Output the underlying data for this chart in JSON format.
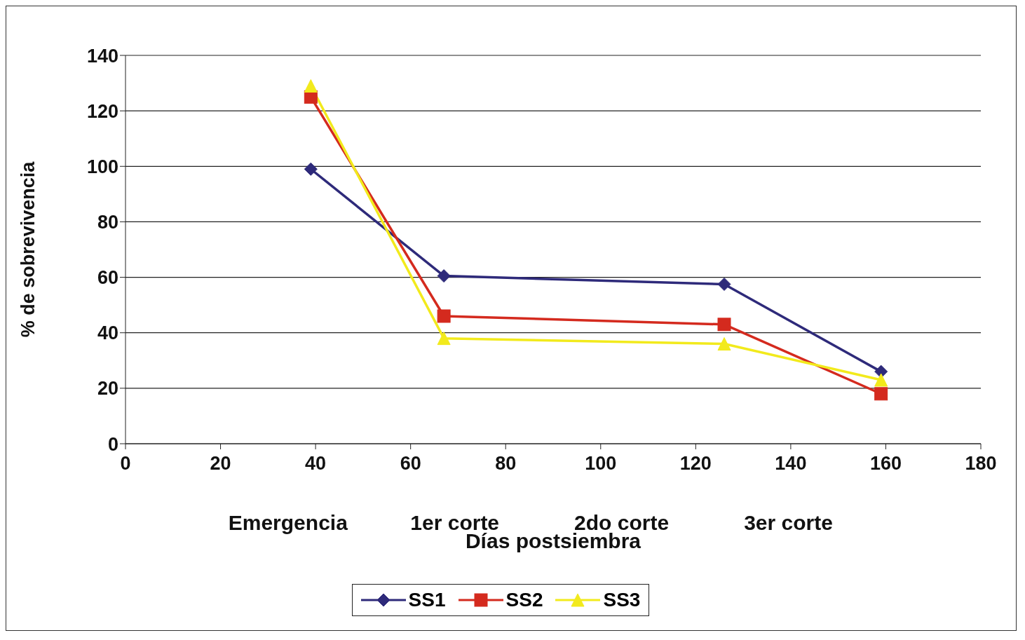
{
  "chart_data": {
    "type": "line",
    "xlabel": "Días postsiembra",
    "ylabel": "% de sobrevivencia",
    "annotations": [
      "Emergencia",
      "1er corte",
      "2do corte",
      "3er corte"
    ],
    "xlim": [
      0,
      180
    ],
    "xticks": [
      0,
      20,
      40,
      60,
      80,
      100,
      120,
      140,
      160,
      180
    ],
    "ylim": [
      0,
      140
    ],
    "yticks": [
      0,
      20,
      40,
      60,
      80,
      100,
      120,
      140
    ],
    "grid": "y",
    "legend": "bottom",
    "line_style": "solid",
    "series": [
      {
        "name": "SS1",
        "color": "#2e2a7a",
        "marker": "diamond",
        "x": [
          39,
          67,
          126,
          159
        ],
        "values": [
          99,
          60.5,
          57.5,
          26
        ]
      },
      {
        "name": "SS2",
        "color": "#d42a1e",
        "marker": "square",
        "x": [
          39,
          67,
          126,
          159
        ],
        "values": [
          125,
          46,
          43,
          18
        ]
      },
      {
        "name": "SS3",
        "color": "#f2ea1c",
        "marker": "triangle",
        "x": [
          39,
          67,
          126,
          159
        ],
        "values": [
          129,
          38,
          36,
          23
        ]
      }
    ]
  }
}
